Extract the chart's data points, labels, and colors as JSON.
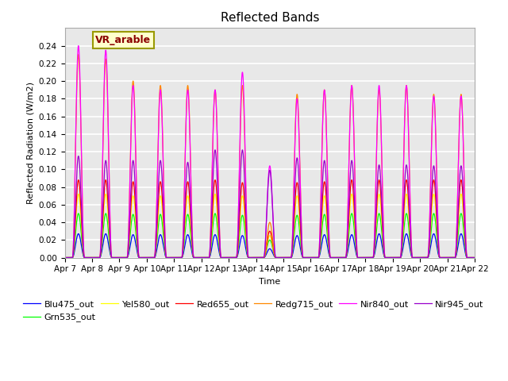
{
  "title": "Reflected Bands",
  "xlabel": "Time",
  "ylabel": "Reflected Radiation (W/m2)",
  "annotation": "VR_arable",
  "ylim": [
    0.0,
    0.26
  ],
  "yticks": [
    0.0,
    0.02,
    0.04,
    0.06,
    0.08,
    0.1,
    0.12,
    0.14,
    0.16,
    0.18,
    0.2,
    0.22,
    0.24
  ],
  "xstart_day": 7,
  "xend_day": 22,
  "num_days": 15,
  "series": [
    {
      "name": "Blu475_out",
      "color": "#0000ff",
      "peaks": [
        0.027,
        0.027,
        0.026,
        0.026,
        0.026,
        0.026,
        0.025,
        0.01,
        0.025,
        0.026,
        0.026,
        0.027,
        0.027,
        0.027,
        0.027
      ]
    },
    {
      "name": "Grn535_out",
      "color": "#00ff00",
      "peaks": [
        0.05,
        0.05,
        0.049,
        0.049,
        0.049,
        0.05,
        0.048,
        0.02,
        0.048,
        0.049,
        0.05,
        0.05,
        0.05,
        0.05,
        0.05
      ]
    },
    {
      "name": "Yel580_out",
      "color": "#ffff00",
      "peaks": [
        0.072,
        0.072,
        0.07,
        0.07,
        0.07,
        0.072,
        0.07,
        0.025,
        0.07,
        0.07,
        0.072,
        0.072,
        0.072,
        0.072,
        0.072
      ]
    },
    {
      "name": "Red655_out",
      "color": "#ff0000",
      "peaks": [
        0.088,
        0.088,
        0.086,
        0.086,
        0.086,
        0.088,
        0.085,
        0.03,
        0.085,
        0.086,
        0.088,
        0.088,
        0.088,
        0.088,
        0.088
      ]
    },
    {
      "name": "Redg715_out",
      "color": "#ff8800",
      "peaks": [
        0.23,
        0.225,
        0.2,
        0.195,
        0.195,
        0.19,
        0.195,
        0.04,
        0.185,
        0.19,
        0.195,
        0.19,
        0.195,
        0.185,
        0.185
      ]
    },
    {
      "name": "Nir840_out",
      "color": "#ff00ff",
      "peaks": [
        0.24,
        0.235,
        0.195,
        0.19,
        0.19,
        0.19,
        0.21,
        0.104,
        0.18,
        0.19,
        0.195,
        0.195,
        0.195,
        0.183,
        0.183
      ]
    },
    {
      "name": "Nir945_out",
      "color": "#9900cc",
      "peaks": [
        0.115,
        0.11,
        0.11,
        0.11,
        0.108,
        0.122,
        0.122,
        0.099,
        0.113,
        0.11,
        0.11,
        0.105,
        0.105,
        0.104,
        0.104
      ]
    }
  ],
  "background_color": "#e8e8e8",
  "grid_color": "#ffffff",
  "title_fontsize": 11,
  "label_fontsize": 8,
  "tick_fontsize": 7.5,
  "legend_fontsize": 8
}
